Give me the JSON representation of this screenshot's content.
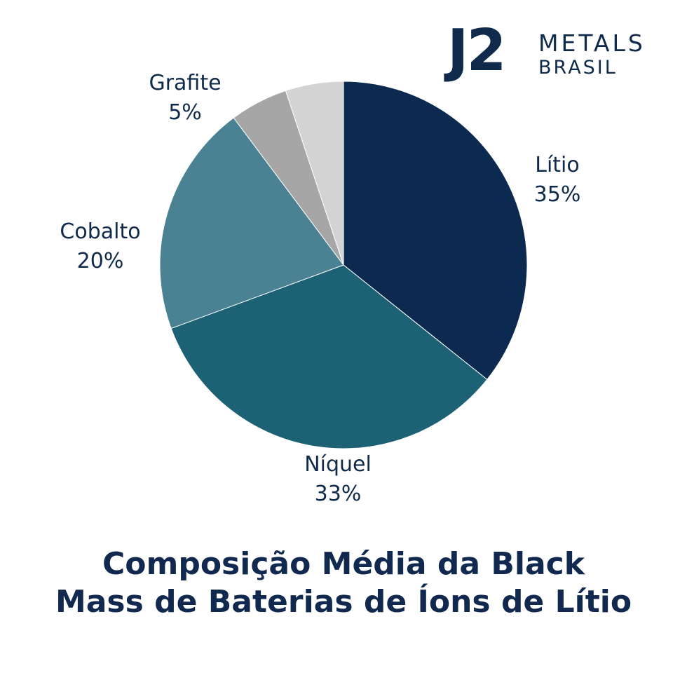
{
  "logo": {
    "mark": "J2",
    "line1": "METALS",
    "line2": "BRASIL"
  },
  "chart_data": {
    "type": "pie",
    "title": "Composição Média da Black Mass de Baterias de Íons de Lítio",
    "title_lines": [
      "Composição Média da Black",
      "Mass de Baterias de Íons de Lítio"
    ],
    "slices": [
      {
        "label": "Lítio",
        "value": 35,
        "value_label": "35%",
        "color": "#0c2a50"
      },
      {
        "label": "Níquel",
        "value": 33,
        "value_label": "33%",
        "color": "#1d6175"
      },
      {
        "label": "Cobalto",
        "value": 20,
        "value_label": "20%",
        "color": "#4a8293"
      },
      {
        "label": "",
        "value": 5,
        "value_label": "",
        "color": "#a6a6a6"
      },
      {
        "label": "Grafite",
        "value": 5,
        "value_label": "5%",
        "color": "#d3d3d3"
      }
    ],
    "legend": "none"
  }
}
